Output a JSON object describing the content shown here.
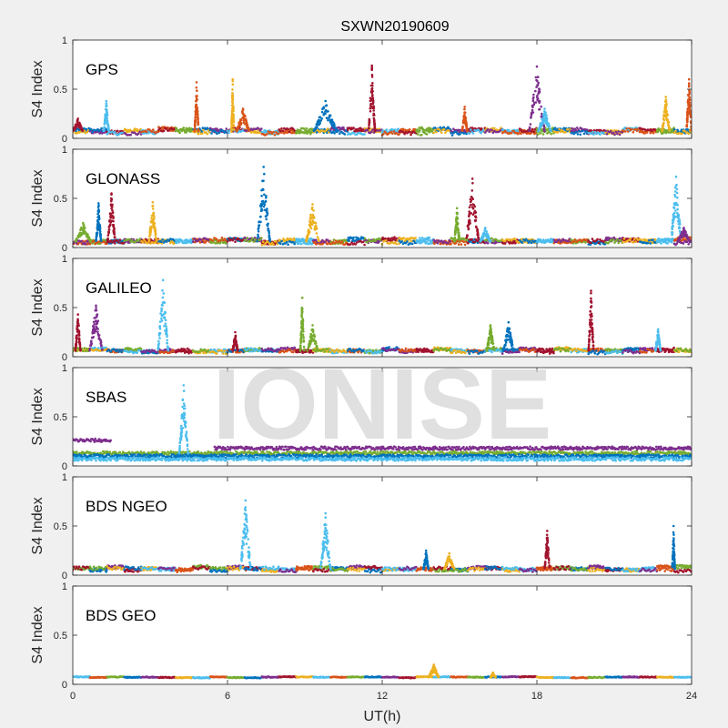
{
  "chart_data": {
    "type": "scatter",
    "title": "SXWN20190609",
    "xlabel": "UT(h)",
    "xlim": [
      0,
      24
    ],
    "xticks": [
      0,
      6,
      12,
      18,
      24
    ],
    "ylim": [
      0,
      1
    ],
    "yticks": [
      0,
      0.5,
      1
    ],
    "ylabel": "S4 Index",
    "watermark": "IONISE",
    "series_colors": [
      "#0072BD",
      "#D95319",
      "#EDB120",
      "#7E2F8E",
      "#77AC30",
      "#4DBEEE",
      "#A2142F"
    ],
    "panels": [
      {
        "label": "GPS",
        "baseline": 0.07,
        "spread": 0.04,
        "bursts": [
          {
            "t": 0.2,
            "peak": 0.2,
            "width": 0.4,
            "c": 6
          },
          {
            "t": 1.3,
            "peak": 0.38,
            "width": 0.2,
            "c": 5
          },
          {
            "t": 4.8,
            "peak": 0.57,
            "width": 0.15,
            "c": 1
          },
          {
            "t": 6.2,
            "peak": 0.6,
            "width": 0.1,
            "c": 2
          },
          {
            "t": 6.6,
            "peak": 0.3,
            "width": 0.5,
            "c": 1
          },
          {
            "t": 9.8,
            "peak": 0.38,
            "width": 0.9,
            "c": 0
          },
          {
            "t": 11.6,
            "peak": 0.74,
            "width": 0.25,
            "c": 6
          },
          {
            "t": 15.2,
            "peak": 0.32,
            "width": 0.2,
            "c": 1
          },
          {
            "t": 18.0,
            "peak": 0.73,
            "width": 0.6,
            "c": 3
          },
          {
            "t": 18.3,
            "peak": 0.3,
            "width": 0.5,
            "c": 5
          },
          {
            "t": 23.0,
            "peak": 0.42,
            "width": 0.3,
            "c": 2
          },
          {
            "t": 23.9,
            "peak": 0.6,
            "width": 0.2,
            "c": 1
          }
        ]
      },
      {
        "label": "GLONASS",
        "baseline": 0.06,
        "spread": 0.04,
        "bursts": [
          {
            "t": 0.4,
            "peak": 0.25,
            "width": 0.6,
            "c": 4
          },
          {
            "t": 1.0,
            "peak": 0.45,
            "width": 0.2,
            "c": 0
          },
          {
            "t": 1.5,
            "peak": 0.55,
            "width": 0.3,
            "c": 6
          },
          {
            "t": 3.1,
            "peak": 0.46,
            "width": 0.3,
            "c": 2
          },
          {
            "t": 7.4,
            "peak": 0.82,
            "width": 0.5,
            "c": 0
          },
          {
            "t": 9.3,
            "peak": 0.44,
            "width": 0.5,
            "c": 2
          },
          {
            "t": 14.9,
            "peak": 0.4,
            "width": 0.2,
            "c": 4
          },
          {
            "t": 15.5,
            "peak": 0.7,
            "width": 0.5,
            "c": 6
          },
          {
            "t": 16.0,
            "peak": 0.2,
            "width": 0.4,
            "c": 5
          },
          {
            "t": 23.4,
            "peak": 0.72,
            "width": 0.4,
            "c": 5
          },
          {
            "t": 23.7,
            "peak": 0.2,
            "width": 0.5,
            "c": 3
          }
        ]
      },
      {
        "label": "GALILEO",
        "baseline": 0.06,
        "spread": 0.035,
        "bursts": [
          {
            "t": 0.2,
            "peak": 0.43,
            "width": 0.2,
            "c": 6
          },
          {
            "t": 0.9,
            "peak": 0.52,
            "width": 0.5,
            "c": 3
          },
          {
            "t": 3.5,
            "peak": 0.78,
            "width": 0.4,
            "c": 5
          },
          {
            "t": 6.3,
            "peak": 0.25,
            "width": 0.2,
            "c": 6
          },
          {
            "t": 8.9,
            "peak": 0.6,
            "width": 0.15,
            "c": 4
          },
          {
            "t": 9.3,
            "peak": 0.32,
            "width": 0.4,
            "c": 4
          },
          {
            "t": 16.2,
            "peak": 0.32,
            "width": 0.3,
            "c": 4
          },
          {
            "t": 16.9,
            "peak": 0.35,
            "width": 0.4,
            "c": 0
          },
          {
            "t": 20.1,
            "peak": 0.67,
            "width": 0.2,
            "c": 6
          },
          {
            "t": 22.7,
            "peak": 0.28,
            "width": 0.2,
            "c": 5
          }
        ]
      },
      {
        "label": "SBAS",
        "baseline": 0.12,
        "spread": 0.03,
        "bands": [
          {
            "level": 0.26,
            "c": 3,
            "t0": 0,
            "t1": 1.5
          },
          {
            "level": 0.18,
            "c": 3,
            "t0": 5.5,
            "t1": 24
          },
          {
            "level": 0.13,
            "c": 4,
            "t0": 0,
            "t1": 24
          },
          {
            "level": 0.1,
            "c": 0,
            "t0": 0,
            "t1": 24
          },
          {
            "level": 0.07,
            "c": 5,
            "t0": 0,
            "t1": 24
          }
        ],
        "bursts": [
          {
            "t": 4.3,
            "peak": 0.82,
            "width": 0.35,
            "c": 5
          }
        ]
      },
      {
        "label": "BDS NGEO",
        "baseline": 0.06,
        "spread": 0.035,
        "bursts": [
          {
            "t": 6.7,
            "peak": 0.76,
            "width": 0.4,
            "c": 5
          },
          {
            "t": 9.8,
            "peak": 0.63,
            "width": 0.4,
            "c": 5
          },
          {
            "t": 13.7,
            "peak": 0.25,
            "width": 0.2,
            "c": 0
          },
          {
            "t": 14.6,
            "peak": 0.22,
            "width": 0.4,
            "c": 2
          },
          {
            "t": 18.4,
            "peak": 0.45,
            "width": 0.2,
            "c": 6
          },
          {
            "t": 23.3,
            "peak": 0.5,
            "width": 0.1,
            "c": 0
          }
        ]
      },
      {
        "label": "BDS GEO",
        "baseline": 0.07,
        "spread": 0.01,
        "flat": true,
        "bursts": [
          {
            "t": 14.0,
            "peak": 0.2,
            "width": 0.4,
            "c": 2
          },
          {
            "t": 16.3,
            "peak": 0.12,
            "width": 0.2,
            "c": 2
          }
        ]
      }
    ]
  }
}
